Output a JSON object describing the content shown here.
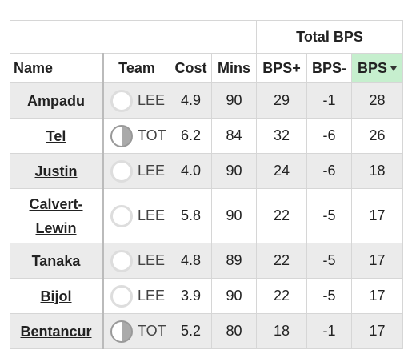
{
  "table": {
    "group_header": "Total BPS",
    "columns": [
      "Name",
      "Team",
      "Cost",
      "Mins",
      "BPS+",
      "BPS-",
      "BPS"
    ],
    "rows": [
      [
        "Ampadu",
        "LEE",
        "4.9",
        90,
        29,
        -1,
        28
      ],
      [
        "Tel",
        "TOT",
        "6.2",
        84,
        32,
        -6,
        26
      ],
      [
        "Justin",
        "LEE",
        "4.0",
        90,
        24,
        -6,
        18
      ],
      [
        "Calvert-Lewin",
        "LEE",
        "5.8",
        90,
        22,
        -5,
        17
      ],
      [
        "Tanaka",
        "LEE",
        "4.8",
        89,
        22,
        -5,
        17
      ],
      [
        "Bijol",
        "LEE",
        "3.9",
        90,
        22,
        -5,
        17
      ],
      [
        "Bentancur",
        "TOT",
        "5.2",
        80,
        18,
        -1,
        17
      ]
    ]
  }
}
